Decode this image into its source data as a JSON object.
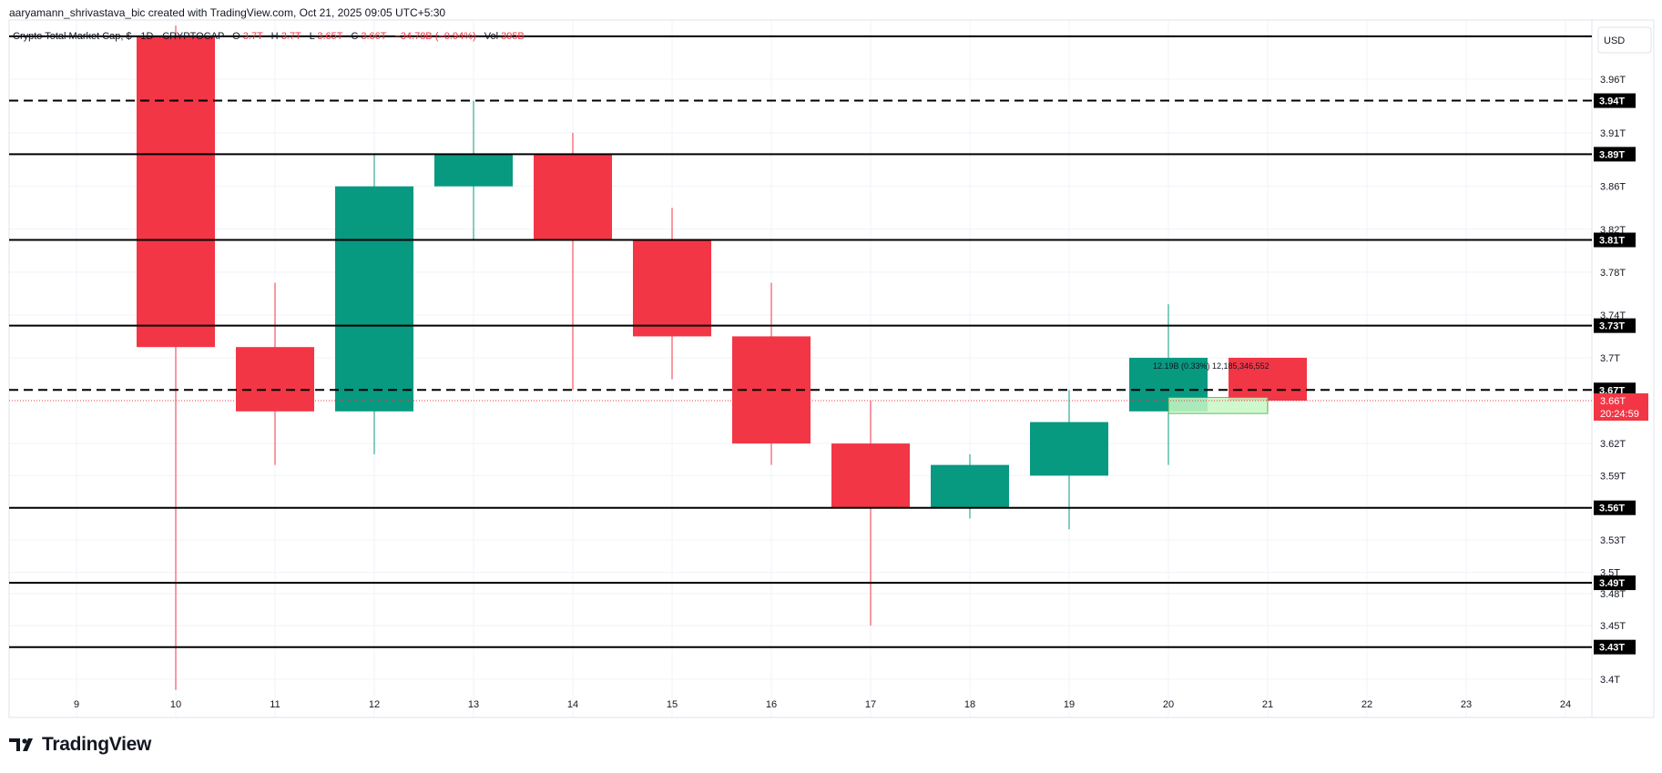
{
  "header": {
    "created_by": "aaryamann_shrivastava_bic created with TradingView.com, Oct 21, 2025 09:05 UTC+5:30"
  },
  "legend": {
    "symbol": "Crypto Total Market Cap, $ · 1D · CRYPTOCAP",
    "o_label": "O",
    "o_value": "3.7T",
    "h_label": "H",
    "h_value": "3.7T",
    "l_label": "L",
    "l_value": "3.65T",
    "c_label": "C",
    "c_value": "3.66T",
    "change": "−34.78B (−0.94%)",
    "vol_label": "Vol",
    "vol_value": "395B"
  },
  "currency_button": "USD",
  "brand": {
    "logo_text": "TradingView"
  },
  "measure_label": "12.19B (0.33%) 12,185,346,552",
  "last_price": {
    "price_label": "3.66T",
    "countdown": "20:24:59"
  },
  "colors": {
    "up": "#089981",
    "down": "#f23645",
    "line": "#000000",
    "grid": "#f0f3fa",
    "axis_text": "#131722",
    "price_line": "#f23645",
    "measure_fill": "#c8f7c5",
    "measure_stroke": "#4caf50"
  },
  "chart_data": {
    "type": "candlestick",
    "title": "Crypto Total Market Cap, $ · 1D · CRYPTOCAP",
    "xlabel": "",
    "ylabel": "",
    "y_unit": "T (USD)",
    "ylim": [
      3.38,
      4.0
    ],
    "grid": true,
    "x_ticks": [
      "9",
      "10",
      "11",
      "12",
      "13",
      "14",
      "15",
      "16",
      "17",
      "18",
      "19",
      "20",
      "21",
      "22",
      "23",
      "24"
    ],
    "y_ticks": [
      {
        "v": 3.96,
        "label": "3.96T"
      },
      {
        "v": 3.91,
        "label": "3.91T"
      },
      {
        "v": 3.86,
        "label": "3.86T"
      },
      {
        "v": 3.82,
        "label": "3.82T"
      },
      {
        "v": 3.78,
        "label": "3.78T"
      },
      {
        "v": 3.74,
        "label": "3.74T"
      },
      {
        "v": 3.7,
        "label": "3.7T"
      },
      {
        "v": 3.62,
        "label": "3.62T"
      },
      {
        "v": 3.59,
        "label": "3.59T"
      },
      {
        "v": 3.53,
        "label": "3.53T"
      },
      {
        "v": 3.5,
        "label": "3.5T"
      },
      {
        "v": 3.48,
        "label": "3.48T"
      },
      {
        "v": 3.45,
        "label": "3.45T"
      },
      {
        "v": 3.4,
        "label": "3.4T"
      }
    ],
    "candles": [
      {
        "day": "10",
        "open": 4.0,
        "high": 4.01,
        "low": 3.39,
        "close": 3.71
      },
      {
        "day": "11",
        "open": 3.71,
        "high": 3.77,
        "low": 3.6,
        "close": 3.65
      },
      {
        "day": "12",
        "open": 3.65,
        "high": 3.89,
        "low": 3.61,
        "close": 3.86
      },
      {
        "day": "13",
        "open": 3.86,
        "high": 3.94,
        "low": 3.81,
        "close": 3.89
      },
      {
        "day": "14",
        "open": 3.89,
        "high": 3.91,
        "low": 3.67,
        "close": 3.81
      },
      {
        "day": "15",
        "open": 3.81,
        "high": 3.84,
        "low": 3.68,
        "close": 3.72
      },
      {
        "day": "16",
        "open": 3.72,
        "high": 3.77,
        "low": 3.6,
        "close": 3.62
      },
      {
        "day": "17",
        "open": 3.62,
        "high": 3.66,
        "low": 3.45,
        "close": 3.56
      },
      {
        "day": "18",
        "open": 3.56,
        "high": 3.61,
        "low": 3.55,
        "close": 3.6
      },
      {
        "day": "19",
        "open": 3.59,
        "high": 3.67,
        "low": 3.54,
        "close": 3.64
      },
      {
        "day": "20",
        "open": 3.65,
        "high": 3.75,
        "low": 3.6,
        "close": 3.7
      },
      {
        "day": "21",
        "open": 3.7,
        "high": 3.7,
        "low": 3.65,
        "close": 3.66
      }
    ],
    "horizontal_lines": [
      {
        "price": 3.94,
        "label": "3.94T",
        "style": "dashed"
      },
      {
        "price": 3.89,
        "label": "3.89T",
        "style": "solid"
      },
      {
        "price": 3.81,
        "label": "3.81T",
        "style": "solid"
      },
      {
        "price": 3.73,
        "label": "3.73T",
        "style": "solid"
      },
      {
        "price": 3.67,
        "label": "3.67T",
        "style": "dashed"
      },
      {
        "price": 3.56,
        "label": "3.56T",
        "style": "solid"
      },
      {
        "price": 3.49,
        "label": "3.49T",
        "style": "solid"
      },
      {
        "price": 3.43,
        "label": "3.43T",
        "style": "solid"
      }
    ],
    "top_line_price": 4.0,
    "last_price_value": 3.66,
    "measure_range": {
      "from_day": "20",
      "to_day": "21",
      "low": 3.648,
      "high": 3.663
    }
  }
}
